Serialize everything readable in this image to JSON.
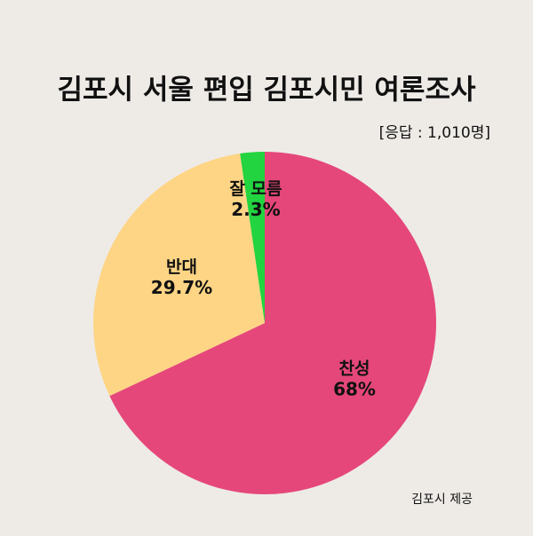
{
  "chart_data": {
    "type": "pie",
    "title": "김포시 서울 편입 김포시민 여론조사",
    "subtitle": "[응답 : 1,010명]",
    "source": "김포시 제공",
    "categories": [
      "찬성",
      "반대",
      "잘 모름"
    ],
    "values": [
      68,
      29.7,
      2.3
    ],
    "value_labels": [
      "68%",
      "29.7%",
      "2.3%"
    ],
    "colors": [
      "#e5477a",
      "#fdd585",
      "#22d43f"
    ]
  }
}
